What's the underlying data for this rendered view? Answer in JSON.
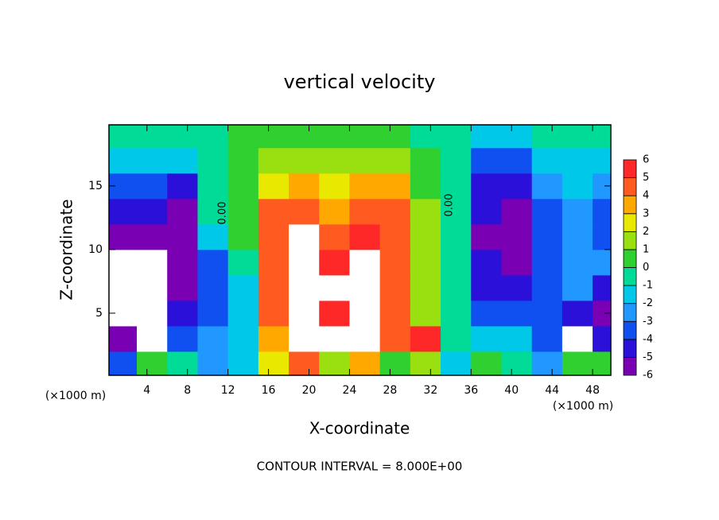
{
  "chart_data": {
    "type": "heatmap",
    "title": "vertical velocity",
    "x_label": "X-coordinate",
    "y_label": "Z-coordinate",
    "x_units": "(×1000 m)",
    "y_units": "(×1000 m)",
    "footer": "CONTOUR INTERVAL = 8.000E+00",
    "contour_labels": [
      "0.00",
      "0.00"
    ],
    "x": [
      1.5,
      4.5,
      7.5,
      10.5,
      13.5,
      16.5,
      19.5,
      22.5,
      25.5,
      28.5,
      31.5,
      34.5,
      37.5,
      40.5,
      43.5,
      46.5,
      49.5
    ],
    "y": [
      1,
      3,
      5,
      7,
      9,
      11,
      13,
      15,
      17,
      19
    ],
    "values": [
      [
        -3,
        1,
        0,
        -2,
        -1,
        3,
        5,
        2,
        4,
        0.5,
        2,
        -1,
        0.5,
        -0.5,
        -2,
        0.5,
        1
      ],
      [
        -5,
        7,
        -3,
        -2,
        -1,
        4,
        8,
        7,
        8,
        5,
        6,
        -0.5,
        -1.5,
        -1.5,
        -3,
        7,
        -4
      ],
      [
        7,
        7,
        -4,
        -3,
        -1,
        5,
        8,
        6,
        8,
        5,
        2,
        -0.5,
        -3,
        -3,
        -3,
        -4,
        -5
      ],
      [
        7,
        7,
        -5,
        -3,
        -1,
        5,
        8,
        7,
        8,
        5,
        1.5,
        -0.5,
        -4,
        -4,
        -3,
        -2,
        -4
      ],
      [
        7,
        7,
        -5.5,
        -3,
        0,
        5,
        8,
        6,
        7,
        5,
        2,
        -0.5,
        -4.5,
        -5.5,
        -3,
        -2,
        -2
      ],
      [
        -5,
        -5,
        -5.5,
        -1,
        0.5,
        5,
        7,
        5,
        6,
        5,
        2,
        -0.5,
        -5,
        -6,
        -3,
        -2,
        -3
      ],
      [
        -4,
        -4.5,
        -5,
        -0.5,
        0.5,
        4.5,
        5,
        4,
        5,
        5,
        2,
        -0.5,
        -4.5,
        -5,
        -3,
        -2,
        -3
      ],
      [
        -3,
        -3.5,
        -4,
        0,
        1,
        3,
        4,
        2.5,
        3.5,
        4,
        1,
        -0.5,
        -4,
        -4,
        -2,
        -1.5,
        -2
      ],
      [
        -1,
        -1.5,
        -1,
        0,
        1,
        1.5,
        2,
        2,
        2,
        1.5,
        0.5,
        -0.5,
        -3,
        -3,
        -1.5,
        -1,
        -1
      ],
      [
        -0.5,
        -0.5,
        -0.5,
        0,
        0.5,
        0.5,
        0.5,
        1,
        1,
        0.5,
        0,
        -0.5,
        -1,
        -1,
        -0.5,
        -0.5,
        -0.5
      ]
    ],
    "xlim": [
      0.25,
      49.8
    ],
    "ylim": [
      0.12,
      19.8
    ],
    "xticks": [
      4,
      8,
      12,
      16,
      20,
      24,
      28,
      32,
      36,
      40,
      44,
      48
    ],
    "yticks": [
      5,
      10,
      15
    ],
    "levels": [
      -6,
      -5,
      -4,
      -3,
      -2,
      -1,
      0,
      1,
      2,
      3,
      4,
      5,
      6
    ],
    "colors": [
      "#7a00b4",
      "#2a10d8",
      "#1050f0",
      "#2098ff",
      "#00c8e8",
      "#00dc98",
      "#30d030",
      "#9ae010",
      "#e8e800",
      "#ffa800",
      "#ff5a20",
      "#ff2828"
    ],
    "above_color": "#ffffff",
    "below_color": "#50007a"
  }
}
